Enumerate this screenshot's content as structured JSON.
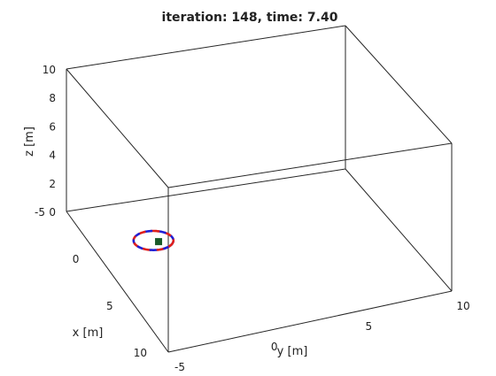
{
  "chart_data": {
    "type": "line",
    "projection": "3d",
    "title": "iteration: 148, time: 7.40",
    "xlabel": "x [m]",
    "ylabel": "y [m]",
    "zlabel": "z [m]",
    "xlim": [
      -5,
      10
    ],
    "ylim": [
      -5,
      10
    ],
    "zlim": [
      0,
      10
    ],
    "x_ticks": [
      "-5",
      "0",
      "5",
      "10"
    ],
    "y_ticks": [
      "-5",
      "0",
      "5",
      "10"
    ],
    "z_ticks": [
      "0",
      "2",
      "4",
      "6",
      "8",
      "10"
    ],
    "grid": false,
    "trajectory": {
      "center": {
        "x": 1.2,
        "y": -2.6,
        "z": 1.4
      },
      "radius": 1.0,
      "turns": 1.15,
      "colors": [
        "#1f1fd6",
        "#e0201c"
      ]
    },
    "current_position": {
      "x": 1.4,
      "y": -2.4,
      "z": 1.4,
      "color": "#1a5a2a"
    }
  }
}
